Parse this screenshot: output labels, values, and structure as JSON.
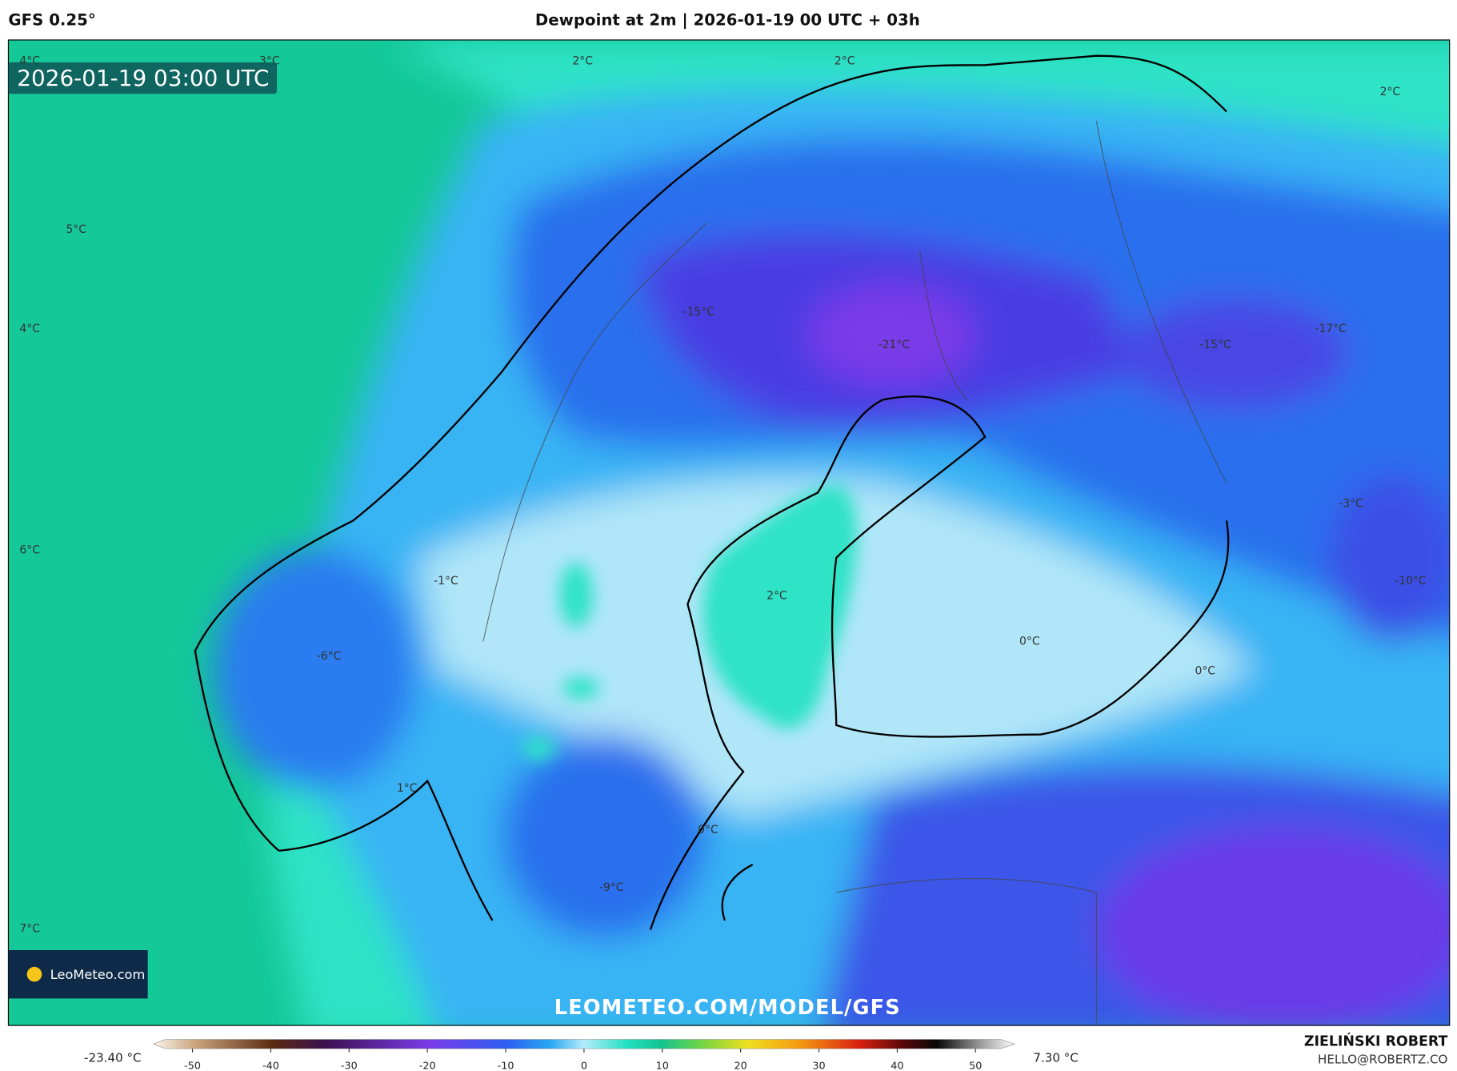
{
  "header": {
    "model": "GFS 0.25°",
    "title": "Dewpoint at 2m | 2026-01-19 00 UTC + 03h"
  },
  "map": {
    "timestamp": "2026-01-19 03:00 UTC",
    "contour_labels": [
      "4°C",
      "3°C",
      "2°C",
      "2°C",
      "2°C",
      "5°C",
      "4°C",
      "-15°C",
      "-21°C",
      "-15°C",
      "-17°C",
      "-3°C",
      "6°C",
      "-1°C",
      "2°C",
      "-10°C",
      "-6°C",
      "0°C",
      "0°C",
      "1°C",
      "0°C",
      "-9°C",
      "7°C"
    ],
    "logo": "LeoMeteo.com",
    "watermark": "LEOMETEO.COM/MODEL/GFS"
  },
  "colorbar": {
    "min_label": "-23.40 °C",
    "max_label": "7.30 °C",
    "range": [
      -55,
      55
    ],
    "ticks": [
      -50,
      -40,
      -30,
      -20,
      -10,
      0,
      10,
      20,
      30,
      40,
      50
    ]
  },
  "footer": {
    "author": "ZIELIŃSKI ROBERT",
    "email": "HELLO@ROBERTZ.CO"
  }
}
